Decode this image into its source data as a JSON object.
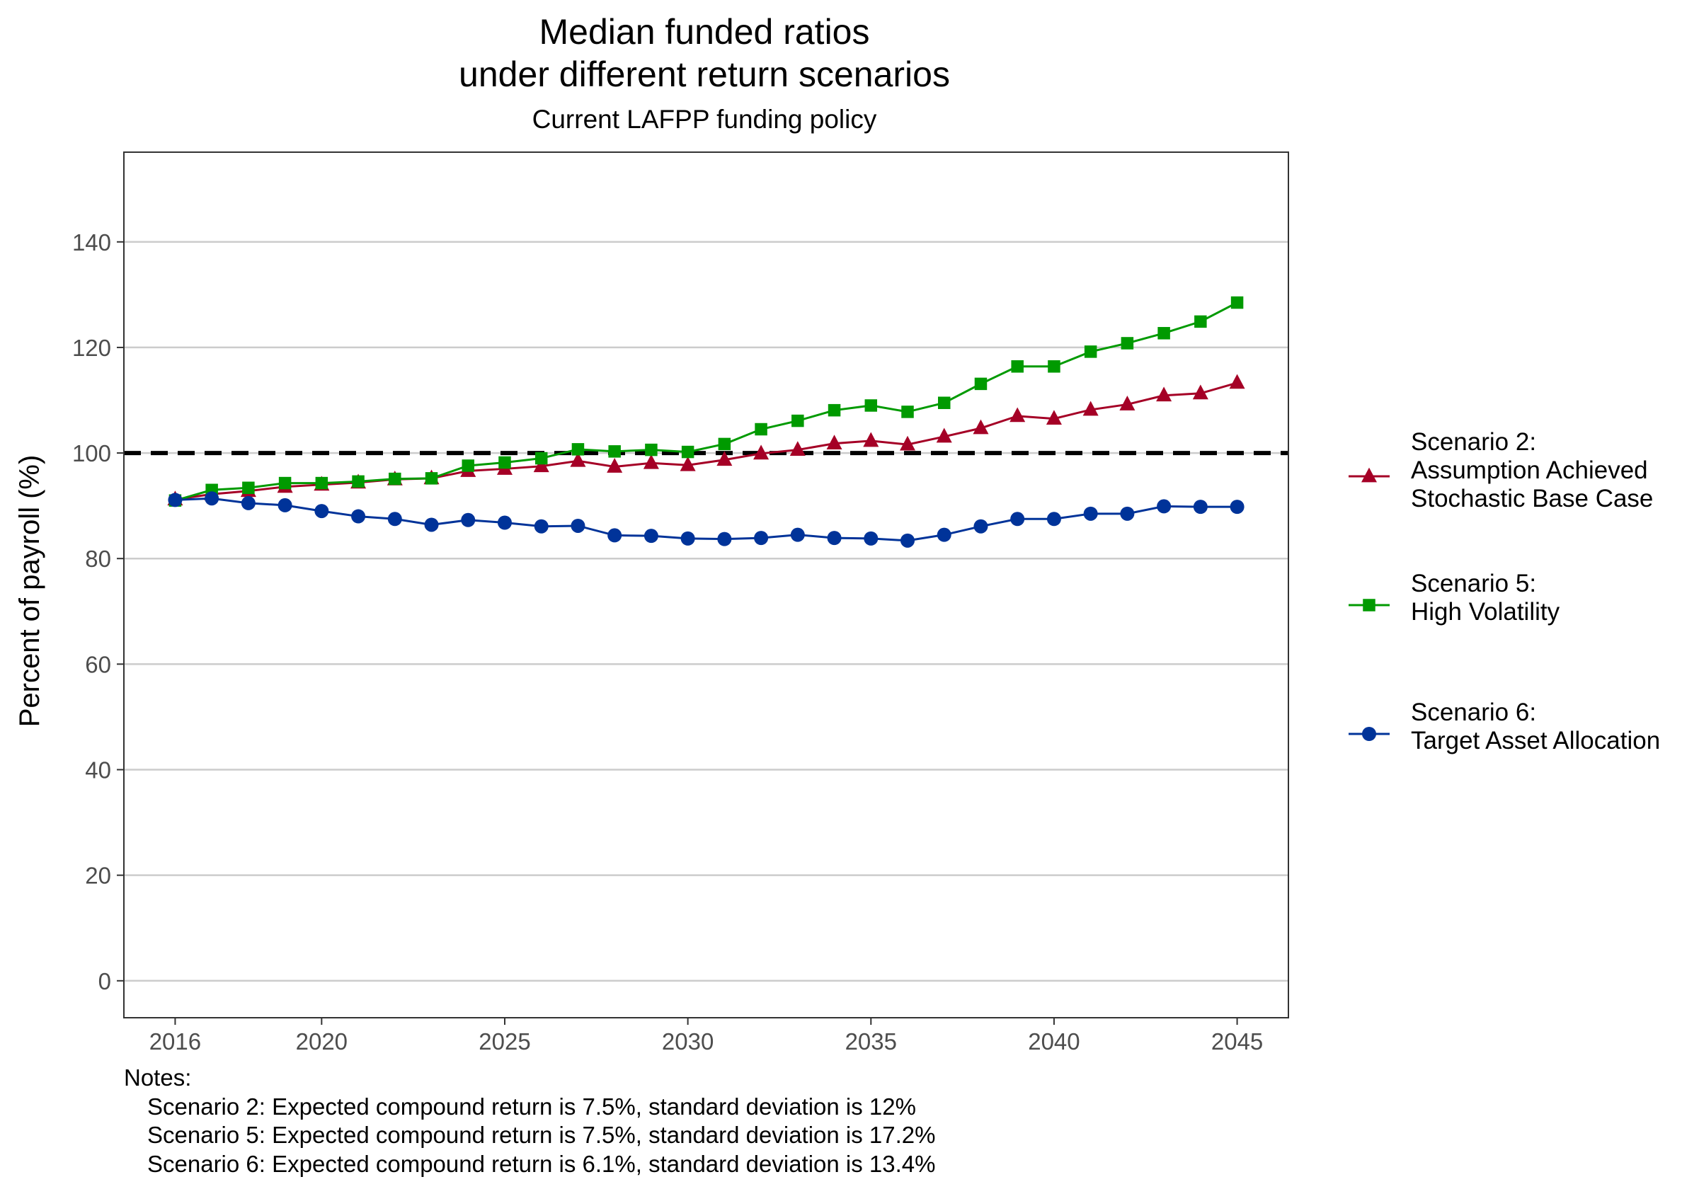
{
  "chart_data": {
    "type": "line",
    "title_lines": [
      "Median funded ratios",
      "under different return scenarios"
    ],
    "subtitle": "Current LAFPP funding policy",
    "xlabel": "",
    "ylabel": "Percent of payroll (%)",
    "xlim": [
      2014.6,
      2046.4
    ],
    "ylim": [
      -7,
      157
    ],
    "x_ticks": [
      2016,
      2020,
      2025,
      2030,
      2035,
      2040,
      2045
    ],
    "y_ticks": [
      0,
      20,
      40,
      60,
      80,
      100,
      120,
      140
    ],
    "grid": "horizontal major",
    "reference_line": {
      "y": 100,
      "style": "dashed",
      "color": "#000000"
    },
    "legend_position": "right",
    "x": [
      2016,
      2017,
      2018,
      2019,
      2020,
      2021,
      2022,
      2023,
      2024,
      2025,
      2026,
      2027,
      2028,
      2029,
      2030,
      2031,
      2032,
      2033,
      2034,
      2035,
      2036,
      2037,
      2038,
      2039,
      2040,
      2041,
      2042,
      2043,
      2044,
      2045
    ],
    "series": [
      {
        "name_lines": [
          "Scenario 2:",
          "Assumption Achieved",
          "Stochastic Base Case"
        ],
        "color": "#a50026",
        "marker": "triangle",
        "values": [
          91.2,
          92.2,
          92.8,
          93.6,
          94.0,
          94.4,
          95.0,
          95.2,
          96.6,
          97.0,
          97.5,
          98.5,
          97.4,
          98.1,
          97.7,
          98.7,
          99.9,
          100.6,
          101.8,
          102.3,
          101.6,
          103.1,
          104.7,
          107.0,
          106.5,
          108.2,
          109.2,
          110.9,
          111.3,
          113.3
        ]
      },
      {
        "name_lines": [
          "Scenario 5:",
          "High Volatility"
        ],
        "color": "#009a00",
        "marker": "square",
        "values": [
          91.0,
          93.0,
          93.4,
          94.3,
          94.3,
          94.6,
          95.1,
          95.2,
          97.6,
          98.2,
          99.0,
          100.7,
          100.3,
          100.6,
          100.2,
          101.7,
          104.5,
          106.1,
          108.1,
          109.0,
          107.8,
          109.5,
          113.1,
          116.4,
          116.4,
          119.2,
          120.8,
          122.7,
          124.9,
          128.5
        ]
      },
      {
        "name_lines": [
          "Scenario 6:",
          "Target Asset Allocation"
        ],
        "color": "#003399",
        "marker": "circle",
        "values": [
          91.1,
          91.4,
          90.5,
          90.1,
          89.0,
          88.0,
          87.5,
          86.4,
          87.3,
          86.8,
          86.1,
          86.2,
          84.4,
          84.3,
          83.8,
          83.7,
          83.9,
          84.5,
          83.9,
          83.8,
          83.4,
          84.5,
          86.1,
          87.5,
          87.5,
          88.5,
          88.5,
          89.9,
          89.8,
          89.8
        ]
      }
    ],
    "notes_header": "Notes:",
    "notes": [
      "Scenario 2: Expected compound return is 7.5%, standard deviation is 12%",
      "Scenario 5: Expected compound return is 7.5%, standard deviation is 17.2%",
      "Scenario 6: Expected compound return is 6.1%, standard deviation is 13.4%"
    ]
  }
}
